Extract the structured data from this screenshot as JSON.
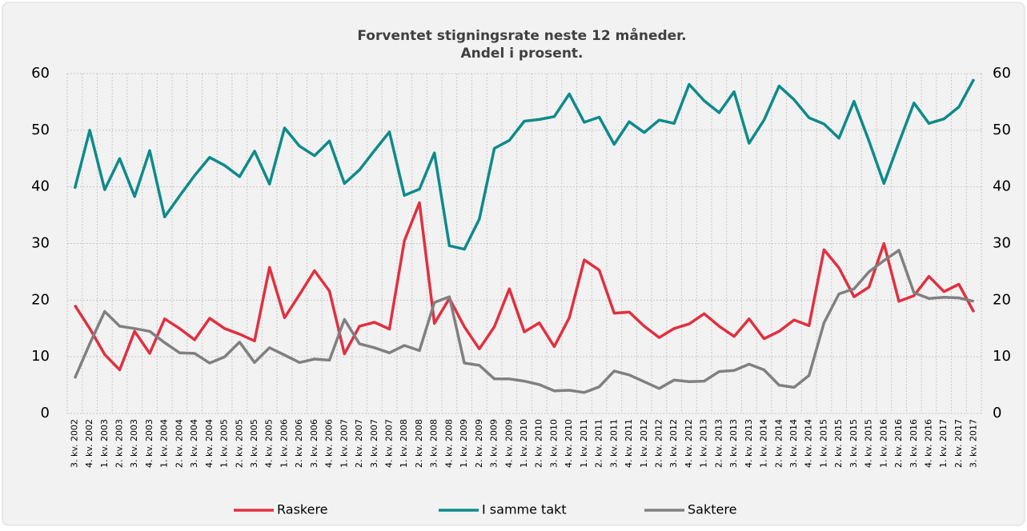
{
  "chart_data": {
    "type": "line",
    "title": "Forventet stigningsrate neste 12 måneder.",
    "subtitle": "Andel i prosent.",
    "categories": [
      "3. kv. 2002",
      "4. kv. 2002",
      "1. kv. 2003",
      "2. kv. 2003",
      "3. kv. 2003",
      "4. kv. 2003",
      "1. kv. 2004",
      "2. kv. 2004",
      "3. kv. 2004",
      "4. kv. 2004",
      "1. kv. 2005",
      "2. kv. 2005",
      "3. kv. 2005",
      "4. kv. 2005",
      "1. kv. 2006",
      "2. kv. 2006",
      "3. kv. 2006",
      "4. kv. 2006",
      "1. kv. 2007",
      "2. kv. 2007",
      "3. kv. 2007",
      "4. kv. 2007",
      "1. kv. 2008",
      "2. kv. 2008",
      "3. kv. 2008",
      "4. kv. 2008",
      "1. kv. 2009",
      "2. kv. 2009",
      "3. kv. 2009",
      "4. kv. 2009",
      "1. kv. 2010",
      "2. kv. 2010",
      "3. kv. 2010",
      "4. kv. 2010",
      "1. kv. 2011",
      "2. kv. 2011",
      "3. kv. 2011",
      "4. kv. 2011",
      "1. kv. 2012",
      "2. kv. 2012",
      "3. kv. 2012",
      "4. kv. 2012",
      "1. kv. 2013",
      "2. kv. 2013",
      "3. kv. 2013",
      "4. kv. 2013",
      "1. kv. 2014",
      "2. kv. 2014",
      "3. kv. 2014",
      "4. kv. 2014",
      "1. kv. 2015",
      "2. kv. 2015",
      "3. kv. 2015",
      "4. kv. 2015",
      "1. kv. 2016",
      "2. kv. 2016",
      "3. kv. 2016",
      "4. kv. 2016",
      "1. kv. 2017",
      "2. kv. 2017",
      "3. kv. 2017"
    ],
    "series": [
      {
        "name": "Raskere",
        "color": "#e03040",
        "values": [
          19.1,
          15,
          10.4,
          7.7,
          14.5,
          10.6,
          16.7,
          15,
          13,
          16.8,
          15,
          14,
          12.8,
          25.8,
          16.9,
          21,
          25.2,
          21.6,
          10.5,
          15.4,
          16.1,
          14.9,
          30.5,
          37.2,
          15.9,
          20.3,
          15.3,
          11.4,
          15.3,
          22,
          14.4,
          16,
          11.8,
          16.9,
          27.1,
          25.3,
          17.7,
          17.9,
          15.4,
          13.4,
          15,
          15.8,
          17.6,
          15.4,
          13.6,
          16.7,
          13.2,
          14.5,
          16.5,
          15.5,
          28.9,
          25.7,
          20.6,
          22.3,
          30,
          19.8,
          20.8,
          24.2,
          21.5,
          22.8,
          17.9
        ]
      },
      {
        "name": "I samme takt",
        "color": "#0f8a8a",
        "values": [
          39.7,
          50,
          39.5,
          45,
          38.3,
          46.4,
          34.7,
          38.4,
          42,
          45.2,
          43.8,
          41.8,
          46.3,
          40.5,
          50.4,
          47.2,
          45.5,
          48.1,
          40.6,
          43,
          46.4,
          49.7,
          38.5,
          39.6,
          46,
          29.6,
          29,
          34.3,
          46.8,
          48.2,
          51.6,
          51.9,
          52.4,
          56.4,
          51.4,
          52.3,
          47.5,
          51.5,
          49.6,
          51.8,
          51.2,
          58.1,
          55.2,
          53.1,
          56.8,
          47.7,
          51.8,
          57.8,
          55.4,
          52.2,
          51.1,
          48.6,
          55.1,
          48.1,
          40.6,
          47.8,
          54.8,
          51.2,
          52,
          54.1,
          59
        ]
      },
      {
        "name": "Saktere",
        "color": "#808080",
        "values": [
          6.2,
          12.3,
          18,
          15.4,
          15,
          14.5,
          12.5,
          10.7,
          10.6,
          8.9,
          10,
          12.6,
          9,
          11.6,
          10.3,
          9,
          9.6,
          9.4,
          16.6,
          12.3,
          11.6,
          10.7,
          12,
          11.1,
          19.6,
          20.6,
          8.9,
          8.5,
          6.1,
          6.1,
          5.7,
          5.1,
          4,
          4.1,
          3.7,
          4.7,
          7.5,
          6.8,
          5.6,
          4.4,
          5.9,
          5.6,
          5.7,
          7.4,
          7.6,
          8.7,
          7.7,
          5,
          4.6,
          6.7,
          16,
          21.1,
          22,
          25,
          27,
          28.8,
          21.3,
          20.3,
          20.5,
          20.4,
          19.8
        ]
      }
    ],
    "ylim": [
      0,
      60
    ],
    "yticks": [
      0,
      10,
      20,
      30,
      40,
      50,
      60
    ],
    "y2lim": [
      0,
      60
    ],
    "y2ticks": [
      0,
      10,
      20,
      30,
      40,
      50,
      60
    ],
    "grid": true,
    "legend": "bottom"
  }
}
